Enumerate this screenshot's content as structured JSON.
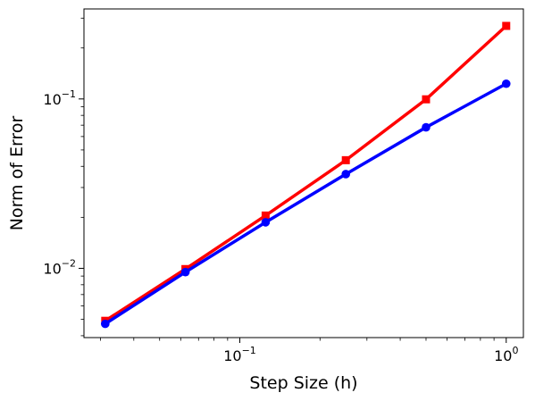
{
  "chart_data": {
    "type": "line",
    "title": "",
    "xlabel": "Step Size (h)",
    "ylabel": "Norm of Error",
    "xscale": "log",
    "yscale": "log",
    "xlim": [
      0.026,
      1.16
    ],
    "ylim": [
      0.0039,
      0.34
    ],
    "grid": false,
    "legend": "none",
    "x": [
      0.03125,
      0.0625,
      0.125,
      0.25,
      0.5,
      1.0
    ],
    "series": [
      {
        "color": "#ff0000",
        "marker": "square",
        "values": [
          0.0049,
          0.0099,
          0.0205,
          0.0435,
          0.0995,
          0.27
        ]
      },
      {
        "color": "#0000ff",
        "marker": "circle",
        "values": [
          0.0047,
          0.0095,
          0.0187,
          0.036,
          0.068,
          0.123
        ]
      }
    ],
    "xticks": [
      {
        "value": 0.1,
        "base": "10",
        "exp": "−1"
      },
      {
        "value": 1,
        "base": "10",
        "exp": "0"
      }
    ],
    "yticks": [
      {
        "value": 0.01,
        "base": "10",
        "exp": "−2"
      },
      {
        "value": 0.1,
        "base": "10",
        "exp": "−1"
      }
    ]
  }
}
